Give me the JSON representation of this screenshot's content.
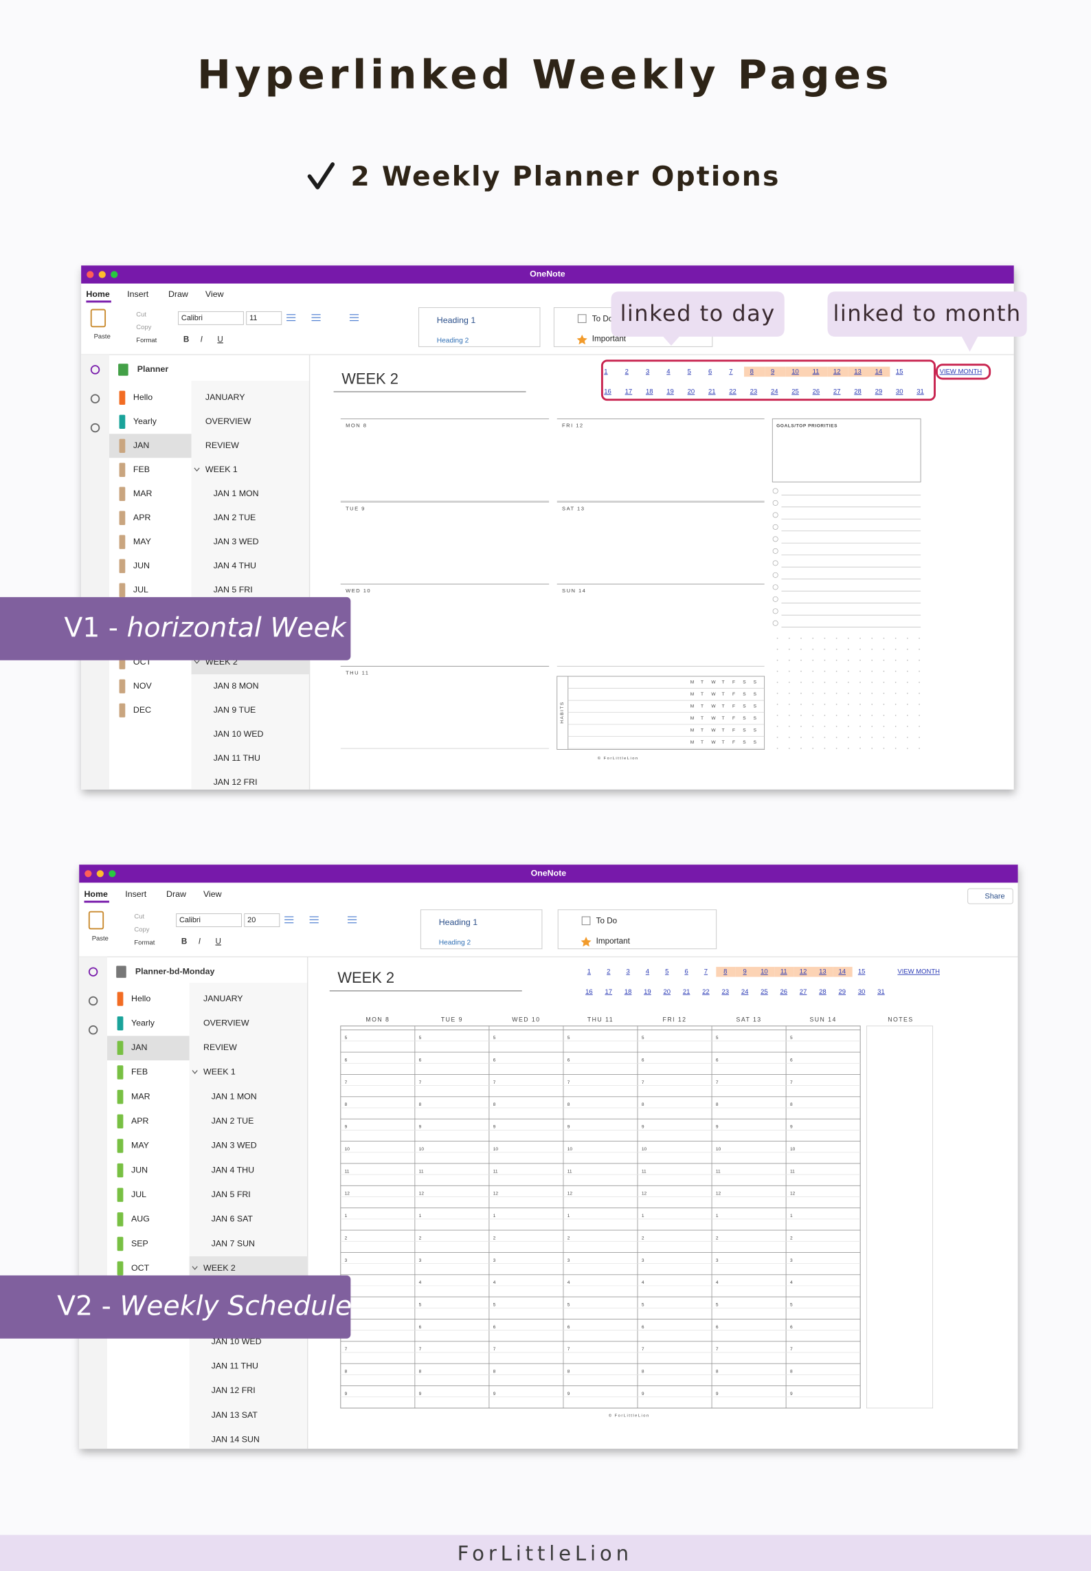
{
  "header": {
    "title": "Hyperlinked Weekly Pages",
    "subtitle": "2 Weekly Planner Options"
  },
  "screens": [
    {
      "layout": "horizontal",
      "app_title": "OneNote",
      "tabs": [
        "Home",
        "Insert",
        "Draw",
        "View"
      ],
      "clipboard": {
        "paste": "Paste",
        "cut": "Cut",
        "copy": "Copy",
        "format": "Format"
      },
      "font": "Calibri",
      "font_size": "11",
      "format_buttons": [
        "B",
        "I",
        "U"
      ],
      "styles": [
        "Heading 1",
        "Heading 2"
      ],
      "tags": [
        "To Do",
        "Important"
      ],
      "notebook": "Planner",
      "sections": [
        "Hello",
        "Yearly",
        "JAN",
        "FEB",
        "MAR",
        "APR",
        "MAY",
        "JUN",
        "JUL",
        null,
        null,
        "OCT",
        "NOV",
        "DEC"
      ],
      "section_colors": [
        "#f26c23",
        "#1aa39a",
        "#c9a57f",
        "#c9a57f",
        "#c9a57f",
        "#c9a57f",
        "#c9a57f",
        "#c9a57f",
        "#c9a57f",
        "#c9a57f",
        "#c9a57f",
        "#c9a57f",
        "#c9a57f",
        "#c9a57f"
      ],
      "selected_section": 2,
      "pages": [
        "JANUARY",
        "OVERVIEW",
        "REVIEW",
        "WEEK 1",
        "JAN 1  MON",
        "JAN 2  TUE",
        "JAN 3  WED",
        "JAN 4  THU",
        "JAN 5  FRI",
        null,
        null,
        "WEEK 2",
        "JAN 8  MON",
        "JAN 9  TUE",
        "JAN 10  WED",
        "JAN 11  THU",
        "JAN 12  FRI"
      ],
      "page_levels": [
        0,
        0,
        0,
        1,
        2,
        2,
        2,
        2,
        2,
        2,
        2,
        1,
        2,
        2,
        2,
        2,
        2
      ],
      "selected_page": 11,
      "week_title": "WEEK 2",
      "day_links": [
        1,
        2,
        3,
        4,
        5,
        6,
        7,
        8,
        9,
        10,
        11,
        12,
        13,
        14,
        15,
        16,
        17,
        18,
        19,
        20,
        21,
        22,
        23,
        24,
        25,
        26,
        27,
        28,
        29,
        30,
        31
      ],
      "highlight": {
        "from": 8,
        "to": 14,
        "color": "#fcd3b4"
      },
      "link_frame": "#c8234f",
      "view_month": "VIEW MONTH",
      "days": [
        "MON  8",
        "TUE  9",
        "WED  10",
        "THU  11",
        "FRI  12",
        "SAT  13",
        "SUN  14"
      ],
      "goals": "GOALS/TOP PRIORITIES",
      "habits": "HABITS",
      "habit_days": [
        "M",
        "T",
        "W",
        "T",
        "F",
        "S",
        "S"
      ],
      "credit": "© ForLittleLion"
    },
    {
      "layout": "schedule",
      "app_title": "OneNote",
      "tabs": [
        "Home",
        "Insert",
        "Draw",
        "View"
      ],
      "clipboard": {
        "paste": "Paste",
        "cut": "Cut",
        "copy": "Copy",
        "format": "Format"
      },
      "font": "Calibri",
      "font_size": "20",
      "format_buttons": [
        "B",
        "I",
        "U"
      ],
      "styles": [
        "Heading 1",
        "Heading 2"
      ],
      "tags": [
        "To Do",
        "Important"
      ],
      "share": "Share",
      "notebook": "Planner-bd-Monday",
      "sections": [
        "Hello",
        "Yearly",
        "JAN",
        "FEB",
        "MAR",
        "APR",
        "MAY",
        "JUN",
        "JUL",
        "AUG",
        "SEP",
        "OCT"
      ],
      "section_colors": [
        "#f26c23",
        "#1aa39a",
        "#78c043",
        "#78c043",
        "#78c043",
        "#78c043",
        "#78c043",
        "#78c043",
        "#78c043",
        "#78c043",
        "#78c043",
        "#78c043"
      ],
      "selected_section": 2,
      "pages": [
        "JANUARY",
        "OVERVIEW",
        "REVIEW",
        "WEEK 1",
        "JAN 1  MON",
        "JAN 2  TUE",
        "JAN 3  WED",
        "JAN 4  THU",
        "JAN 5  FRI",
        "JAN 6  SAT",
        "JAN 7  SUN",
        "WEEK 2",
        null,
        null,
        "JAN 10  WED",
        "JAN 11  THU",
        "JAN 12  FRI",
        "JAN 13  SAT",
        "JAN 14  SUN"
      ],
      "page_levels": [
        0,
        0,
        0,
        1,
        2,
        2,
        2,
        2,
        2,
        2,
        2,
        1,
        2,
        2,
        2,
        2,
        2,
        2,
        2
      ],
      "selected_page": 11,
      "week_title": "WEEK 2",
      "day_links": [
        1,
        2,
        3,
        4,
        5,
        6,
        7,
        8,
        9,
        10,
        11,
        12,
        13,
        14,
        15,
        16,
        17,
        18,
        19,
        20,
        21,
        22,
        23,
        24,
        25,
        26,
        27,
        28,
        29,
        30,
        31
      ],
      "highlight": {
        "from": 8,
        "to": 14,
        "color": "#fcd3b4"
      },
      "view_month": "VIEW MONTH",
      "days": [
        "MON  8",
        "TUE  9",
        "WED  10",
        "THU  11",
        "FRI  12",
        "SAT  13",
        "SUN  14"
      ],
      "notes": "NOTES",
      "hours": [
        5,
        6,
        7,
        8,
        9,
        10,
        11,
        12,
        1,
        2,
        3,
        4,
        5,
        6,
        7,
        8,
        9
      ],
      "credit": "© ForLittleLion"
    }
  ],
  "callouts": [
    "linked to day",
    "linked to month"
  ],
  "labels": [
    {
      "prefix": "V1 - ",
      "emphasis": "horizontal Week"
    },
    {
      "prefix": "V2 - ",
      "emphasis": "Weekly Schedule"
    }
  ],
  "footer": "ForLittleLion"
}
